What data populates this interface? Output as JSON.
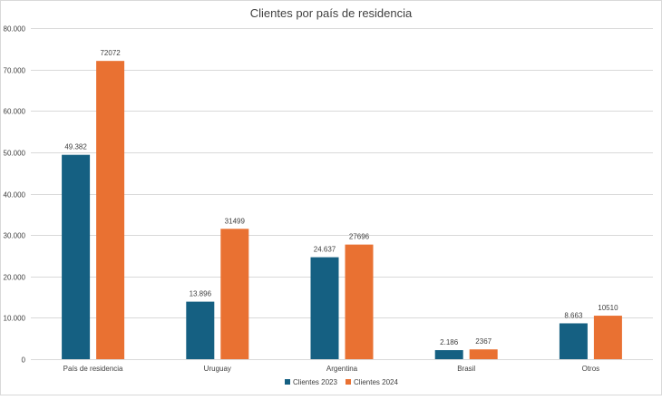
{
  "chart_data": {
    "type": "bar",
    "title": "Clientes por país de residencia",
    "xlabel": "",
    "ylabel": "",
    "categories": [
      "País de residencia",
      "Uruguay",
      "Argentina",
      "Brasil",
      "Otros"
    ],
    "series": [
      {
        "name": "Clientes 2023",
        "color": "#156082",
        "values": [
          49382,
          13896,
          24637,
          2186,
          8663
        ],
        "labels": [
          "49.382",
          "13.896",
          "24.637",
          "2.186",
          "8.663"
        ]
      },
      {
        "name": "Clientes 2024",
        "color": "#E97132",
        "values": [
          72072,
          31499,
          27696,
          2367,
          10510
        ],
        "labels": [
          "72072",
          "31499",
          "27696",
          "2367",
          "10510"
        ]
      }
    ],
    "ylim": [
      0,
      80000
    ],
    "yticks": [
      0,
      10000,
      20000,
      30000,
      40000,
      50000,
      60000,
      70000,
      80000
    ],
    "ytick_labels": [
      "0",
      "10.000",
      "20.000",
      "30.000",
      "40.000",
      "50.000",
      "60.000",
      "70.000",
      "80.000"
    ],
    "grid": true,
    "legend_position": "bottom"
  }
}
